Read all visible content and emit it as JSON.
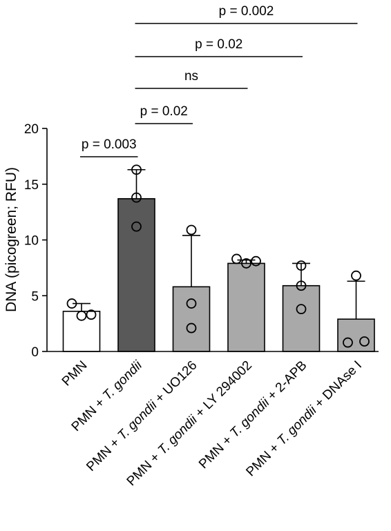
{
  "chart_data": {
    "type": "bar",
    "ylabel": "DNA (picogreen; RFU)",
    "ylim": [
      0,
      20
    ],
    "yticks": [
      0,
      5,
      10,
      15,
      20
    ],
    "categories": [
      {
        "parts": [
          {
            "text": "PMN",
            "italic": false
          }
        ]
      },
      {
        "parts": [
          {
            "text": "PMN + ",
            "italic": false
          },
          {
            "text": "T. gondii",
            "italic": true
          }
        ]
      },
      {
        "parts": [
          {
            "text": "PMN + ",
            "italic": false
          },
          {
            "text": "T. gondii",
            "italic": true
          },
          {
            "text": " + UO126",
            "italic": false
          }
        ]
      },
      {
        "parts": [
          {
            "text": "PMN + ",
            "italic": false
          },
          {
            "text": "T. gondii",
            "italic": true
          },
          {
            "text": " + LY 294002",
            "italic": false
          }
        ]
      },
      {
        "parts": [
          {
            "text": "PMN + ",
            "italic": false
          },
          {
            "text": "T. gondii",
            "italic": true
          },
          {
            "text": " + 2-APB",
            "italic": false
          }
        ]
      },
      {
        "parts": [
          {
            "text": "PMN + ",
            "italic": false
          },
          {
            "text": "T. gondii",
            "italic": true
          },
          {
            "text": " + DNAse I",
            "italic": false
          }
        ]
      }
    ],
    "means": [
      3.6,
      13.7,
      5.8,
      7.9,
      5.9,
      2.9
    ],
    "sd": [
      0.7,
      2.6,
      4.6,
      0.3,
      2.0,
      3.4
    ],
    "points": [
      [
        4.3,
        3.2,
        3.3
      ],
      [
        16.3,
        13.8,
        11.2
      ],
      [
        10.9,
        4.3,
        2.1
      ],
      [
        8.3,
        7.9,
        8.1
      ],
      [
        7.7,
        5.9,
        3.8
      ],
      [
        6.8,
        0.8,
        0.9
      ]
    ],
    "bar_colors": [
      "#ffffff",
      "#595959",
      "#a9a9a9",
      "#a9a9a9",
      "#a9a9a9",
      "#a9a9a9"
    ],
    "comparisons": [
      {
        "from": 0,
        "to": 1,
        "label": "p = 0.003"
      },
      {
        "from": 1,
        "to": 2,
        "label": "p = 0.02"
      },
      {
        "from": 1,
        "to": 3,
        "label": "ns"
      },
      {
        "from": 1,
        "to": 4,
        "label": "p = 0.02"
      },
      {
        "from": 1,
        "to": 5,
        "label": "p = 0.002"
      }
    ]
  }
}
